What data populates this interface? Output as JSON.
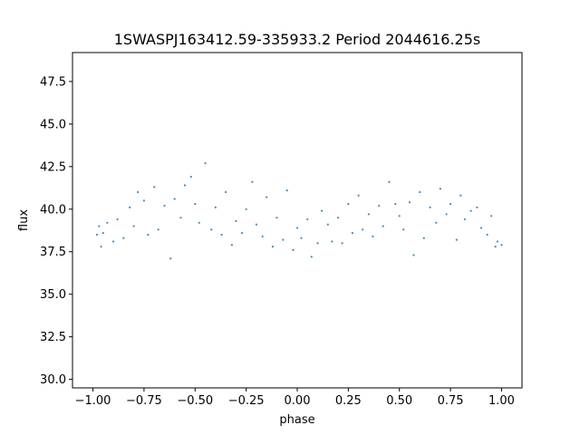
{
  "chart_data": {
    "type": "scatter",
    "title": "1SWASPJ163412.59-335933.2 Period 2044616.25s",
    "xlabel": "phase",
    "ylabel": "flux",
    "xlim": [
      -1.1,
      1.1
    ],
    "ylim": [
      29.5,
      49.2
    ],
    "x_ticks": [
      -1.0,
      -0.75,
      -0.5,
      -0.25,
      0.0,
      0.25,
      0.5,
      0.75,
      1.0
    ],
    "x_tick_labels": [
      "−1.00",
      "−0.75",
      "−0.50",
      "−0.25",
      "0.00",
      "0.25",
      "0.50",
      "0.75",
      "1.00"
    ],
    "y_ticks": [
      30.0,
      32.5,
      35.0,
      37.5,
      40.0,
      42.5,
      45.0,
      47.5
    ],
    "y_tick_labels": [
      "30.0",
      "32.5",
      "35.0",
      "37.5",
      "40.0",
      "42.5",
      "45.0",
      "47.5"
    ],
    "grid": false,
    "legend": "none",
    "marker_color": "#1f77b4",
    "series": [
      {
        "x": [
          -0.98,
          -0.97,
          -0.96,
          -0.95,
          -0.93,
          -0.9,
          -0.88,
          -0.85,
          -0.82,
          -0.8,
          -0.78,
          -0.75,
          -0.73,
          -0.7,
          -0.68,
          -0.65,
          -0.62,
          -0.6,
          -0.57,
          -0.55,
          -0.52,
          -0.5,
          -0.48,
          -0.45,
          -0.42,
          -0.4,
          -0.37,
          -0.35,
          -0.32,
          -0.3,
          -0.27,
          -0.25,
          -0.22,
          -0.2,
          -0.17,
          -0.15,
          -0.12,
          -0.1,
          -0.07,
          -0.05,
          -0.02,
          0.0,
          0.02,
          0.05,
          0.07,
          0.1,
          0.12,
          0.15,
          0.17,
          0.2,
          0.22,
          0.25,
          0.27,
          0.3,
          0.32,
          0.35,
          0.37,
          0.4,
          0.42,
          0.45,
          0.48,
          0.5,
          0.52,
          0.55,
          0.57,
          0.6,
          0.62,
          0.65,
          0.68,
          0.7,
          0.73,
          0.75,
          0.78,
          0.8,
          0.82,
          0.85,
          0.88,
          0.9,
          0.93,
          0.95,
          0.97,
          0.98,
          1.0
        ],
        "y": [
          38.5,
          39.0,
          37.8,
          38.6,
          39.2,
          38.1,
          39.4,
          38.3,
          40.1,
          39.0,
          41.0,
          40.5,
          38.5,
          41.3,
          38.8,
          40.2,
          37.1,
          40.6,
          39.5,
          41.4,
          41.9,
          40.3,
          39.2,
          42.7,
          38.8,
          40.1,
          38.5,
          41.0,
          37.9,
          39.3,
          38.6,
          40.0,
          41.6,
          39.1,
          38.4,
          40.7,
          37.8,
          39.5,
          38.2,
          41.1,
          37.6,
          38.9,
          38.3,
          39.4,
          37.2,
          38.0,
          39.9,
          39.1,
          38.1,
          39.5,
          38.0,
          40.3,
          38.6,
          40.8,
          38.8,
          39.7,
          38.4,
          40.2,
          39.0,
          41.6,
          40.3,
          39.6,
          38.8,
          40.4,
          37.3,
          41.0,
          38.3,
          40.1,
          39.2,
          41.2,
          39.7,
          40.3,
          38.2,
          40.8,
          39.4,
          39.9,
          40.1,
          38.9,
          38.5,
          39.6,
          37.8,
          38.1,
          37.9
        ]
      }
    ]
  }
}
